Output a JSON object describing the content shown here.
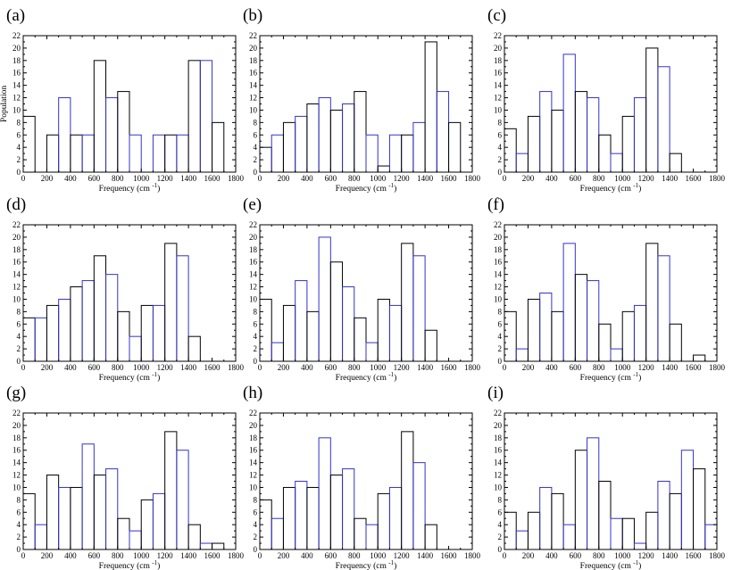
{
  "colors": {
    "bar_stroke_a": "#3333cc",
    "bar_stroke_b": "#000000",
    "axis": "#000000"
  },
  "chart_data": [
    {
      "type": "bar",
      "panel": "(a)",
      "bin_width": 100,
      "bin_start": 0,
      "values": [
        9,
        0,
        6,
        12,
        6,
        6,
        18,
        12,
        13,
        6,
        0,
        6,
        6,
        6,
        18,
        18,
        8
      ],
      "xlabel": "Frequency (cm",
      "xlabel_sup": "-1",
      "xlabel_end": ")",
      "ylabel": "Population",
      "xlim": [
        0,
        1800
      ],
      "ylim": [
        0,
        22
      ],
      "xticks": [
        0,
        200,
        400,
        600,
        800,
        1000,
        1200,
        1400,
        1600,
        1800
      ],
      "yticks": [
        0,
        2,
        4,
        6,
        8,
        10,
        12,
        14,
        16,
        18,
        20,
        22
      ]
    },
    {
      "type": "bar",
      "panel": "(b)",
      "bin_width": 100,
      "bin_start": 0,
      "values": [
        4,
        6,
        8,
        9,
        11,
        12,
        10,
        11,
        13,
        6,
        1,
        6,
        6,
        8,
        21,
        13,
        8
      ],
      "xlabel": "Frequency (cm",
      "xlabel_sup": "-1",
      "xlabel_end": ")",
      "ylabel": "",
      "xlim": [
        0,
        1800
      ],
      "ylim": [
        0,
        22
      ],
      "xticks": [
        0,
        200,
        400,
        600,
        800,
        1000,
        1200,
        1400,
        1600,
        1800
      ],
      "yticks": [
        0,
        2,
        4,
        6,
        8,
        10,
        12,
        14,
        16,
        18,
        20,
        22
      ]
    },
    {
      "type": "bar",
      "panel": "(c)",
      "bin_width": 100,
      "bin_start": 0,
      "values": [
        7,
        3,
        9,
        13,
        10,
        19,
        13,
        12,
        6,
        3,
        9,
        12,
        20,
        17,
        3
      ],
      "xlabel": "Frequency (cm",
      "xlabel_sup": "-1",
      "xlabel_end": ")",
      "ylabel": "",
      "xlim": [
        0,
        1800
      ],
      "ylim": [
        0,
        22
      ],
      "xticks": [
        0,
        200,
        400,
        600,
        800,
        1000,
        1200,
        1400,
        1600,
        1800
      ],
      "yticks": [
        0,
        2,
        4,
        6,
        8,
        10,
        12,
        14,
        16,
        18,
        20,
        22
      ]
    },
    {
      "type": "bar",
      "panel": "(d)",
      "bin_width": 100,
      "bin_start": 0,
      "values": [
        7,
        7,
        9,
        10,
        12,
        13,
        17,
        14,
        8,
        4,
        9,
        9,
        19,
        17,
        4
      ],
      "xlabel": "Frequency (cm",
      "xlabel_sup": "-1",
      "xlabel_end": ")",
      "ylabel": "",
      "xlim": [
        0,
        1800
      ],
      "ylim": [
        0,
        22
      ],
      "xticks": [
        0,
        200,
        400,
        600,
        800,
        1000,
        1200,
        1400,
        1600,
        1800
      ],
      "yticks": [
        0,
        2,
        4,
        6,
        8,
        10,
        12,
        14,
        16,
        18,
        20,
        22
      ]
    },
    {
      "type": "bar",
      "panel": "(e)",
      "bin_width": 100,
      "bin_start": 0,
      "values": [
        10,
        3,
        9,
        13,
        8,
        20,
        16,
        12,
        7,
        3,
        10,
        9,
        19,
        17,
        5
      ],
      "xlabel": "Frequency (cm",
      "xlabel_sup": "-1",
      "xlabel_end": ")",
      "ylabel": "",
      "xlim": [
        0,
        1800
      ],
      "ylim": [
        0,
        22
      ],
      "xticks": [
        0,
        200,
        400,
        600,
        800,
        1000,
        1200,
        1400,
        1600,
        1800
      ],
      "yticks": [
        0,
        2,
        4,
        6,
        8,
        10,
        12,
        14,
        16,
        18,
        20,
        22
      ]
    },
    {
      "type": "bar",
      "panel": "(f)",
      "bin_width": 100,
      "bin_start": 0,
      "values": [
        8,
        2,
        10,
        11,
        8,
        19,
        14,
        13,
        6,
        2,
        8,
        9,
        19,
        17,
        6,
        0,
        1
      ],
      "xlabel": "Frequency (cm",
      "xlabel_sup": "-1",
      "xlabel_end": ")",
      "ylabel": "",
      "xlim": [
        0,
        1800
      ],
      "ylim": [
        0,
        22
      ],
      "xticks": [
        0,
        200,
        400,
        600,
        800,
        1000,
        1200,
        1400,
        1600,
        1800
      ],
      "yticks": [
        0,
        2,
        4,
        6,
        8,
        10,
        12,
        14,
        16,
        18,
        20,
        22
      ]
    },
    {
      "type": "bar",
      "panel": "(g)",
      "bin_width": 100,
      "bin_start": 0,
      "values": [
        9,
        4,
        12,
        10,
        10,
        17,
        12,
        13,
        5,
        3,
        8,
        9,
        19,
        16,
        4,
        1,
        1
      ],
      "xlabel": "Frequency (cm",
      "xlabel_sup": "-1",
      "xlabel_end": ")",
      "ylabel": "",
      "xlim": [
        0,
        1800
      ],
      "ylim": [
        0,
        22
      ],
      "xticks": [
        0,
        200,
        400,
        600,
        800,
        1000,
        1200,
        1400,
        1600,
        1800
      ],
      "yticks": [
        0,
        2,
        4,
        6,
        8,
        10,
        12,
        14,
        16,
        18,
        20,
        22
      ]
    },
    {
      "type": "bar",
      "panel": "(h)",
      "bin_width": 100,
      "bin_start": 0,
      "values": [
        8,
        5,
        10,
        11,
        10,
        18,
        12,
        13,
        5,
        4,
        9,
        10,
        19,
        14,
        4
      ],
      "xlabel": "Frequency (cm",
      "xlabel_sup": "-1",
      "xlabel_end": ")",
      "ylabel": "",
      "xlim": [
        0,
        1800
      ],
      "ylim": [
        0,
        22
      ],
      "xticks": [
        0,
        200,
        400,
        600,
        800,
        1000,
        1200,
        1400,
        1600,
        1800
      ],
      "yticks": [
        0,
        2,
        4,
        6,
        8,
        10,
        12,
        14,
        16,
        18,
        20,
        22
      ]
    },
    {
      "type": "bar",
      "panel": "(i)",
      "bin_width": 100,
      "bin_start": 0,
      "values": [
        6,
        3,
        6,
        10,
        9,
        4,
        16,
        18,
        11,
        5,
        5,
        1,
        6,
        11,
        9,
        16,
        13,
        4
      ],
      "xlabel": "Frequency (cm",
      "xlabel_sup": "-1",
      "xlabel_end": ")",
      "ylabel": "",
      "xlim": [
        0,
        1800
      ],
      "ylim": [
        0,
        22
      ],
      "xticks": [
        0,
        200,
        400,
        600,
        800,
        1000,
        1200,
        1400,
        1600,
        1800
      ],
      "yticks": [
        0,
        2,
        4,
        6,
        8,
        10,
        12,
        14,
        16,
        18,
        20,
        22
      ]
    }
  ]
}
